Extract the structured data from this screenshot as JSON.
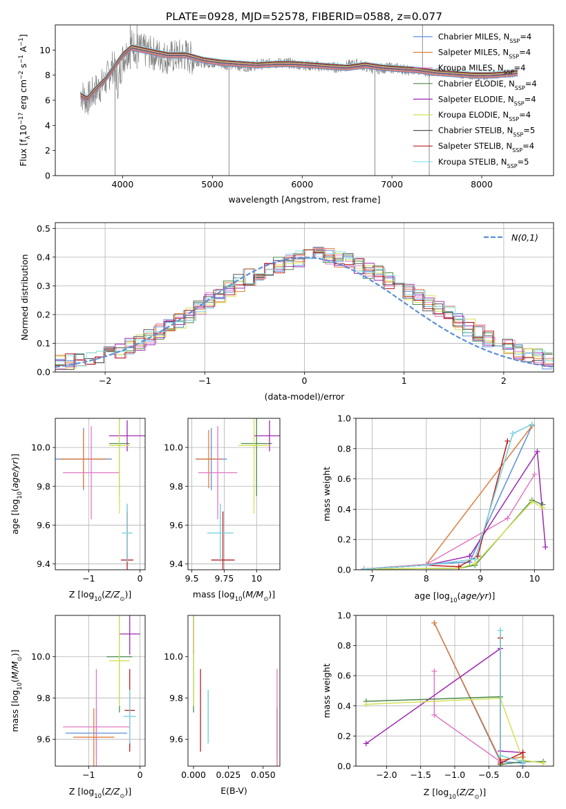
{
  "figure": {
    "title": "PLATE=0928, MJD=52578, FIBERID=0588, z=0.077"
  },
  "chart_data": [
    {
      "id": "spectrum",
      "type": "line",
      "xlabel": "wavelength [Angstrom, rest frame]",
      "ylabel": "Flux [f_λ 10^-17 erg cm^-2 s^-1 A^-1]",
      "xlim": [
        3250,
        8800
      ],
      "ylim": [
        0,
        12
      ],
      "xticks": [
        4000,
        5000,
        6000,
        7000,
        8000
      ],
      "yticks": [
        0,
        2,
        4,
        6,
        8,
        10
      ],
      "grid": false,
      "legend_position": "top-right",
      "data_series": {
        "name": "data",
        "color": "#808080",
        "x": [
          3530,
          3600,
          3700,
          3800,
          3900,
          3950,
          4000,
          4100,
          4200,
          4300,
          4400,
          4500,
          4600,
          4700,
          4800,
          4900,
          5000,
          5200,
          5400,
          5600,
          5800,
          6000,
          6200,
          6400,
          6600,
          6800,
          7000,
          7200,
          7400,
          7600,
          7800,
          8000,
          8200,
          8400
        ],
        "y": [
          6.6,
          6.0,
          6.8,
          7.4,
          8.8,
          7.3,
          9.3,
          10.4,
          10.0,
          9.8,
          9.6,
          9.4,
          9.5,
          9.6,
          9.2,
          9.0,
          9.0,
          8.8,
          8.7,
          8.9,
          9.0,
          8.8,
          8.7,
          8.6,
          8.9,
          8.5,
          8.6,
          8.4,
          8.2,
          8.3,
          8.0,
          7.9,
          8.1,
          8.2
        ]
      },
      "models": {
        "x": [
          3530,
          3600,
          3700,
          3800,
          3900,
          4000,
          4100,
          4300,
          4500,
          4700,
          4900,
          5100,
          5300,
          5500,
          5700,
          5900,
          6100,
          6300,
          6500,
          6700,
          6900,
          7100,
          7300,
          7500,
          7700,
          7900,
          8100,
          8300,
          8400
        ],
        "y": [
          6.4,
          6.1,
          6.9,
          7.6,
          8.6,
          9.6,
          10.2,
          9.9,
          9.6,
          9.6,
          9.2,
          9.0,
          8.9,
          8.8,
          8.9,
          8.9,
          8.8,
          8.7,
          8.6,
          8.8,
          8.6,
          8.5,
          8.4,
          8.2,
          8.1,
          8.0,
          8.0,
          8.1,
          8.2
        ]
      },
      "series": [
        {
          "name": "Chabrier MILES, N_SSP=4",
          "label_main": "Chabrier MILES, N",
          "label_sub": "SSP",
          "label_tail": "=4",
          "color": "#5b8fd8"
        },
        {
          "name": "Salpeter MILES, N_SSP=4",
          "label_main": "Salpeter MILES, N",
          "label_sub": "SSP",
          "label_tail": "=4",
          "color": "#e07b39"
        },
        {
          "name": "Kroupa MILES, N_SSP=4",
          "label_main": "Kroupa MILES, N",
          "label_sub": "SSP",
          "label_tail": "=4",
          "color": "#e377c2"
        },
        {
          "name": "Chabrier ELODIE, N_SSP=4",
          "label_main": "Chabrier ELODIE, N",
          "label_sub": "SSP",
          "label_tail": "=4",
          "color": "#4a8a4a"
        },
        {
          "name": "Salpeter ELODIE, N_SSP=4",
          "label_main": "Salpeter ELODIE, N",
          "label_sub": "SSP",
          "label_tail": "=4",
          "color": "#9c27b0"
        },
        {
          "name": "Kroupa ELODIE, N_SSP=4",
          "label_main": "Kroupa ELODIE, N",
          "label_sub": "SSP",
          "label_tail": "=4",
          "color": "#d4e157"
        },
        {
          "name": "Chabrier STELIB, N_SSP=5",
          "label_main": "Chabrier STELIB, N",
          "label_sub": "SSP",
          "label_tail": "=5",
          "color": "#555555"
        },
        {
          "name": "Salpeter STELIB, N_SSP=4",
          "label_main": "Salpeter STELIB, N",
          "label_sub": "SSP",
          "label_tail": "=4",
          "color": "#b71c1c"
        },
        {
          "name": "Kroupa STELIB, N_SSP=5",
          "label_main": "Kroupa STELIB, N",
          "label_sub": "SSP",
          "label_tail": "=5",
          "color": "#80deea"
        }
      ]
    },
    {
      "id": "residuals",
      "type": "line",
      "xlabel": "(data-model)/error",
      "ylabel": "Normed distribution",
      "xlim": [
        -2.5,
        2.5
      ],
      "ylim": [
        0,
        0.52
      ],
      "xticks": [
        -2,
        -1,
        0,
        1,
        2
      ],
      "yticks": [
        0.0,
        0.1,
        0.2,
        0.3,
        0.4,
        0.5
      ],
      "grid": true,
      "legend_position": "top-right",
      "reference_curve": {
        "name": "N(0,1)",
        "color": "#5b8fd8"
      },
      "histogram_bin_width": 0.1,
      "histogram_base": [
        0.03,
        0.035,
        0.04,
        0.045,
        0.055,
        0.065,
        0.075,
        0.09,
        0.105,
        0.12,
        0.14,
        0.16,
        0.18,
        0.2,
        0.225,
        0.25,
        0.27,
        0.29,
        0.31,
        0.33,
        0.345,
        0.36,
        0.375,
        0.385,
        0.395,
        0.42,
        0.41,
        0.4,
        0.39,
        0.385,
        0.37,
        0.355,
        0.34,
        0.32,
        0.3,
        0.28,
        0.26,
        0.24,
        0.22,
        0.2,
        0.175,
        0.155,
        0.135,
        0.115,
        0.1,
        0.085,
        0.07,
        0.06,
        0.05,
        0.04
      ]
    },
    {
      "id": "z-vs-age",
      "type": "scatter",
      "xlabel": "Z [log10(Z/Z_sun)]",
      "ylabel": "age [log10(age/yr)]",
      "xlim": [
        -1.65,
        0.1
      ],
      "ylim": [
        9.37,
        10.15
      ],
      "xticks": [
        -1,
        0
      ],
      "yticks": [
        9.4,
        9.6,
        9.8,
        10.0
      ],
      "grid": true,
      "points": [
        {
          "series": 0,
          "x": -1.1,
          "y": 9.94,
          "xerr": 0.55,
          "yerr": 0.16
        },
        {
          "series": 1,
          "x": -1.1,
          "y": 9.94,
          "xerr": 0.45,
          "yerr": 0.15
        },
        {
          "series": 2,
          "x": -0.95,
          "y": 9.87,
          "xerr": 0.55,
          "yerr": 0.24
        },
        {
          "series": 3,
          "x": -0.4,
          "y": 10.02,
          "xerr": 0.2,
          "yerr": 0.27
        },
        {
          "series": 4,
          "x": -0.25,
          "y": 10.06,
          "xerr": 0.35,
          "yerr": 0.08
        },
        {
          "series": 5,
          "x": -0.4,
          "y": 10.01,
          "xerr": 0.2,
          "yerr": 0.35
        },
        {
          "series": 6,
          "x": -0.25,
          "y": 9.56,
          "xerr": 0.1,
          "yerr": 0.15
        },
        {
          "series": 7,
          "x": -0.25,
          "y": 9.42,
          "xerr": 0.12,
          "yerr": 0.25
        },
        {
          "series": 8,
          "x": -0.25,
          "y": 9.56,
          "xerr": 0.1,
          "yerr": 0.15
        }
      ]
    },
    {
      "id": "mass-vs-age",
      "type": "scatter",
      "xlabel": "mass [log10(M/M_sun)]",
      "ylabel": "",
      "xlim": [
        9.47,
        10.18
      ],
      "ylim": [
        9.37,
        10.15
      ],
      "xticks": [
        9.5,
        9.75,
        10.0
      ],
      "yticks": [
        9.4,
        9.6,
        9.8,
        10.0
      ],
      "grid": true,
      "points": [
        {
          "series": 0,
          "x": 9.65,
          "y": 9.94,
          "xerr": 0.12,
          "yerr": 0.16
        },
        {
          "series": 1,
          "x": 9.63,
          "y": 9.94,
          "xerr": 0.1,
          "yerr": 0.15
        },
        {
          "series": 2,
          "x": 9.7,
          "y": 9.87,
          "xerr": 0.15,
          "yerr": 0.24
        },
        {
          "series": 3,
          "x": 10.0,
          "y": 10.02,
          "xerr": 0.12,
          "yerr": 0.27
        },
        {
          "series": 4,
          "x": 10.1,
          "y": 10.06,
          "xerr": 0.12,
          "yerr": 0.08
        },
        {
          "series": 5,
          "x": 9.98,
          "y": 10.01,
          "xerr": 0.12,
          "yerr": 0.35
        },
        {
          "series": 6,
          "x": 9.72,
          "y": 9.56,
          "xerr": 0.1,
          "yerr": 0.15
        },
        {
          "series": 7,
          "x": 9.74,
          "y": 9.42,
          "xerr": 0.09,
          "yerr": 0.25
        },
        {
          "series": 8,
          "x": 9.72,
          "y": 9.56,
          "xerr": 0.1,
          "yerr": 0.15
        }
      ]
    },
    {
      "id": "age-mass-weight",
      "type": "line",
      "xlabel": "age [log10(age/yr)]",
      "ylabel": "mass weight",
      "xlim": [
        6.7,
        10.35
      ],
      "ylim": [
        0,
        1
      ],
      "xticks": [
        7,
        8,
        9,
        10
      ],
      "yticks": [
        0.0,
        0.2,
        0.4,
        0.6,
        0.8,
        1.0
      ],
      "grid": true,
      "series_points": [
        {
          "series": 0,
          "x": [
            6.85,
            8.0,
            8.8,
            9.95
          ],
          "y": [
            0.005,
            0.035,
            0.05,
            0.95
          ]
        },
        {
          "series": 1,
          "x": [
            6.85,
            8.0,
            9.95
          ],
          "y": [
            0.005,
            0.035,
            0.95
          ]
        },
        {
          "series": 2,
          "x": [
            6.85,
            8.0,
            9.5,
            10.0
          ],
          "y": [
            0.005,
            0.035,
            0.34,
            0.63
          ]
        },
        {
          "series": 3,
          "x": [
            6.85,
            8.6,
            8.9,
            9.95,
            10.15
          ],
          "y": [
            0.005,
            0.01,
            0.03,
            0.46,
            0.43
          ]
        },
        {
          "series": 4,
          "x": [
            6.85,
            8.0,
            8.8,
            10.05,
            10.2
          ],
          "y": [
            0.005,
            0.03,
            0.09,
            0.78,
            0.15
          ]
        },
        {
          "series": 5,
          "x": [
            6.85,
            8.6,
            8.9,
            9.95,
            10.15
          ],
          "y": [
            0.005,
            0.01,
            0.04,
            0.45,
            0.41
          ]
        },
        {
          "series": 6,
          "x": [
            6.85,
            8.0,
            8.9,
            9.6,
            9.95
          ],
          "y": [
            0.005,
            0.03,
            0.07,
            0.9,
            0.96
          ]
        },
        {
          "series": 7,
          "x": [
            6.85,
            8.0,
            8.6,
            8.95,
            9.5
          ],
          "y": [
            0.005,
            0.03,
            0.02,
            0.09,
            0.85
          ]
        },
        {
          "series": 8,
          "x": [
            6.85,
            8.0,
            8.9,
            9.6,
            9.95
          ],
          "y": [
            0.005,
            0.03,
            0.07,
            0.9,
            0.96
          ]
        }
      ]
    },
    {
      "id": "z-vs-mass",
      "type": "scatter",
      "xlabel": "Z [log10(Z/Z_sun)]",
      "ylabel": "mass [log10(M/M_sun)]",
      "xlim": [
        -1.65,
        0.1
      ],
      "ylim": [
        9.47,
        10.2
      ],
      "xticks": [
        -1,
        0
      ],
      "yticks": [
        9.6,
        9.8,
        10.0
      ],
      "grid": true,
      "points": [
        {
          "series": 0,
          "x": -0.85,
          "y": 9.63,
          "xerr": 0.6,
          "yerr": 0.12
        },
        {
          "series": 1,
          "x": -0.9,
          "y": 9.61,
          "xerr": 0.4,
          "yerr": 0.14
        },
        {
          "series": 2,
          "x": -0.85,
          "y": 9.66,
          "xerr": 0.65,
          "yerr": 0.28
        },
        {
          "series": 3,
          "x": -0.4,
          "y": 10.0,
          "xerr": 0.25,
          "yerr": 0.27
        },
        {
          "series": 4,
          "x": -0.2,
          "y": 10.11,
          "xerr": 0.2,
          "yerr": 0.1
        },
        {
          "series": 5,
          "x": -0.4,
          "y": 9.98,
          "xerr": 0.2,
          "yerr": 0.22
        },
        {
          "series": 6,
          "x": -0.2,
          "y": 9.71,
          "xerr": 0.12,
          "yerr": 0.13
        },
        {
          "series": 7,
          "x": -0.2,
          "y": 9.74,
          "xerr": 0.1,
          "yerr": 0.2
        },
        {
          "series": 8,
          "x": -0.2,
          "y": 9.71,
          "xerr": 0.12,
          "yerr": 0.13
        }
      ]
    },
    {
      "id": "ebv-vs-mass",
      "type": "scatter",
      "xlabel": "E(B-V)",
      "ylabel": "",
      "xlim": [
        -0.004,
        0.062
      ],
      "ylim": [
        9.47,
        10.2
      ],
      "xticks": [
        0.0,
        0.025,
        0.05
      ],
      "xtick_labels": [
        "0.000",
        "0.025",
        "0.050"
      ],
      "yticks": [
        9.6,
        9.8,
        10.0
      ],
      "grid": false,
      "points": [
        {
          "series": 3,
          "x": 0.0,
          "y": 10.0,
          "yerr": 0.27
        },
        {
          "series": 4,
          "x": 0.0,
          "y": 10.11,
          "yerr": 0.1
        },
        {
          "series": 5,
          "x": 0.0,
          "y": 9.98,
          "yerr": 0.22
        },
        {
          "series": 7,
          "x": 0.005,
          "y": 9.74,
          "yerr": 0.2
        },
        {
          "series": 6,
          "x": 0.0105,
          "y": 9.71,
          "yerr": 0.13
        },
        {
          "series": 8,
          "x": 0.0105,
          "y": 9.71,
          "yerr": 0.13
        },
        {
          "series": 0,
          "x": 0.06,
          "y": 9.63,
          "yerr": 0.12
        },
        {
          "series": 1,
          "x": 0.06,
          "y": 9.61,
          "yerr": 0.14
        },
        {
          "series": 2,
          "x": 0.06,
          "y": 9.66,
          "yerr": 0.28
        }
      ]
    },
    {
      "id": "z-mass-weight",
      "type": "line",
      "xlabel": "Z [log10(Z/Z_sun)]",
      "ylabel": "mass weight",
      "xlim": [
        -2.45,
        0.45
      ],
      "ylim": [
        0,
        1
      ],
      "xticks": [
        -2.0,
        -1.5,
        -1.0,
        -0.5,
        0.0
      ],
      "xtick_labels": [
        "−2.0",
        "−1.5",
        "−1.0",
        "−0.5",
        "0.0"
      ],
      "yticks": [
        0.0,
        0.2,
        0.4,
        0.6,
        0.8,
        1.0
      ],
      "grid": true,
      "series_points": [
        {
          "series": 0,
          "x": [
            -1.3,
            -0.33,
            0.0,
            0.0
          ],
          "y": [
            0.95,
            0.03,
            0.02,
            0.0
          ]
        },
        {
          "series": 1,
          "x": [
            -1.3,
            -0.33,
            0.0
          ],
          "y": [
            0.95,
            0.04,
            0.06
          ]
        },
        {
          "series": 2,
          "x": [
            -1.3,
            -1.3,
            -0.33
          ],
          "y": [
            0.63,
            0.34,
            0.03
          ]
        },
        {
          "series": 3,
          "x": [
            -2.3,
            -0.33,
            -0.33,
            0.0,
            0.3
          ],
          "y": [
            0.43,
            0.46,
            0.01,
            0.03,
            0.03
          ]
        },
        {
          "series": 4,
          "x": [
            -2.3,
            -0.33,
            -0.33,
            0.0,
            0.0
          ],
          "y": [
            0.15,
            0.78,
            0.1,
            0.09,
            0.0
          ]
        },
        {
          "series": 5,
          "x": [
            -2.3,
            -0.33,
            0.0,
            0.3
          ],
          "y": [
            0.41,
            0.45,
            0.04,
            0.02
          ]
        },
        {
          "series": 6,
          "x": [
            -0.33,
            -0.33,
            0.0,
            0.0
          ],
          "y": [
            0.9,
            0.07,
            0.03,
            0.0
          ]
        },
        {
          "series": 7,
          "x": [
            -0.33,
            -0.33,
            0.0,
            0.0
          ],
          "y": [
            0.85,
            0.02,
            0.09,
            0.03
          ]
        },
        {
          "series": 8,
          "x": [
            -0.33,
            -0.33,
            0.0,
            0.0
          ],
          "y": [
            0.9,
            0.07,
            0.03,
            0.0
          ]
        }
      ]
    }
  ]
}
